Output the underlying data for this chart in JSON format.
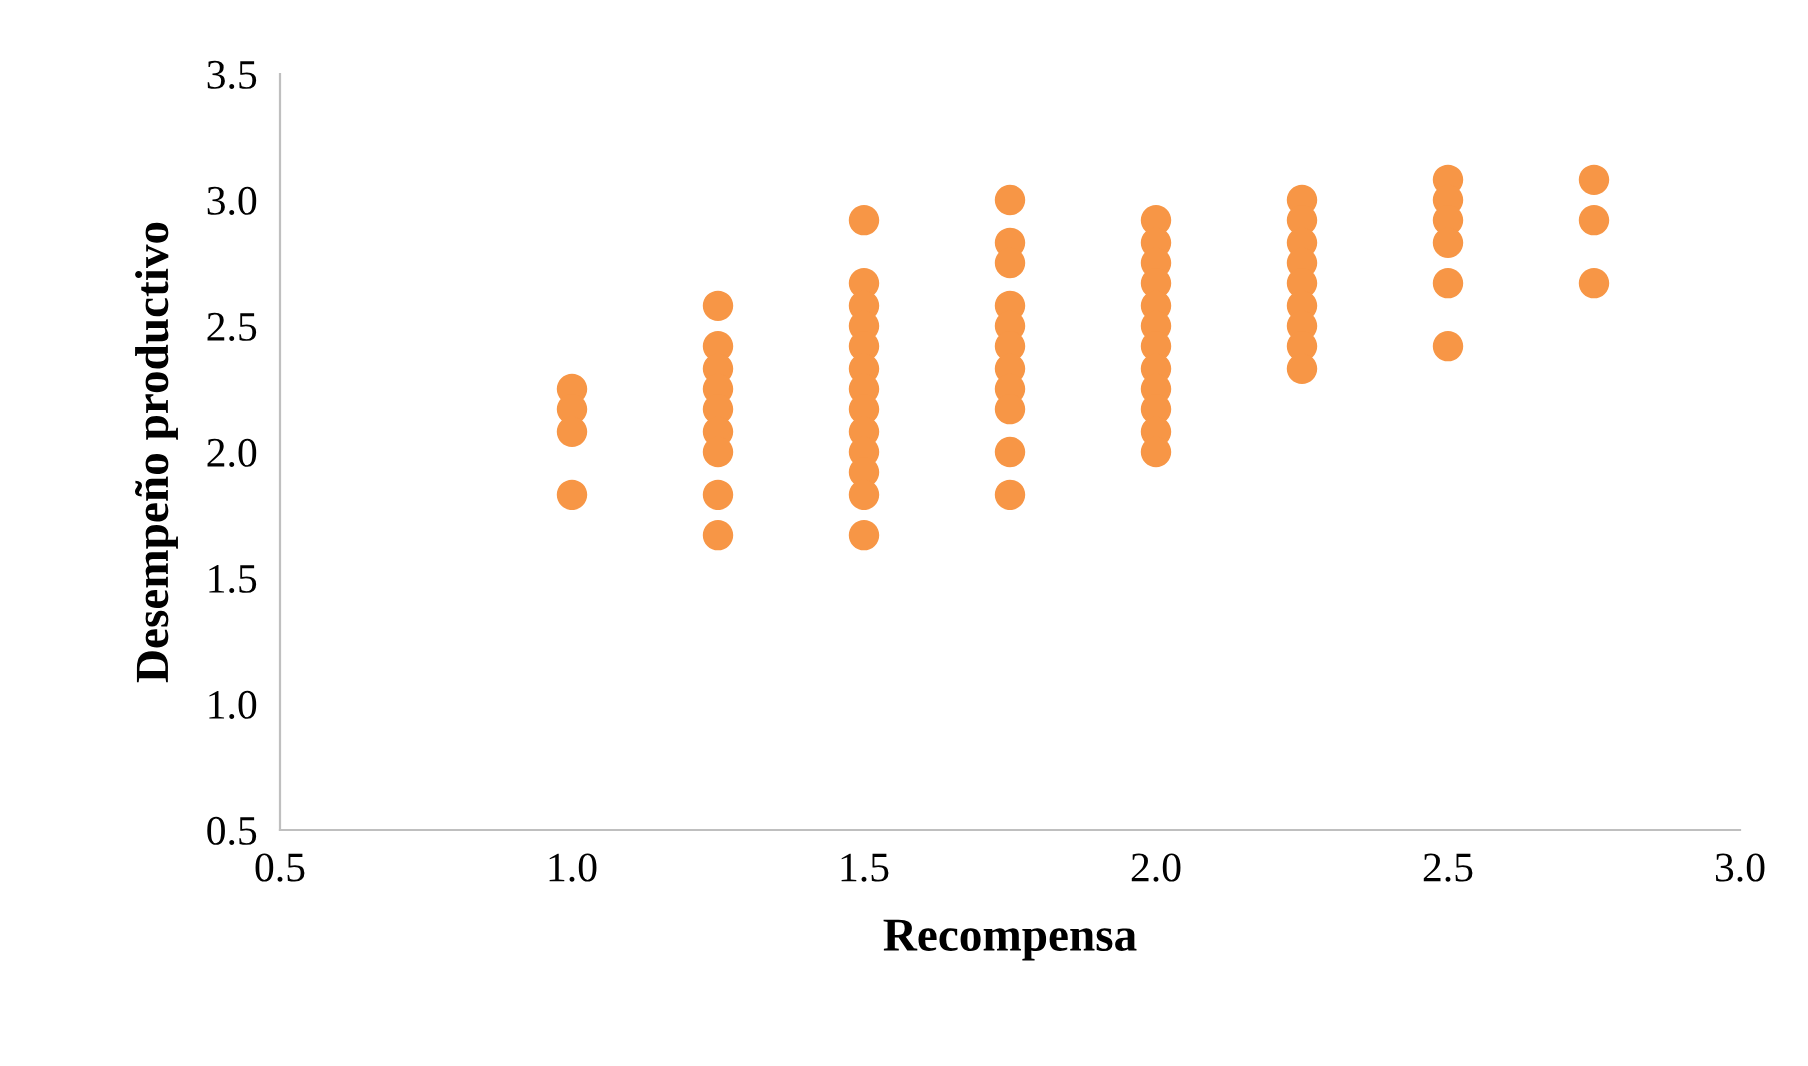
{
  "chart_data": {
    "type": "scatter",
    "xlabel": "Recompensa",
    "ylabel": "Desempeño productivo",
    "xlim": [
      0.5,
      3.0
    ],
    "ylim": [
      0.5,
      3.5
    ],
    "xticks": [
      {
        "value": 0.5,
        "label": "0.5"
      },
      {
        "value": 1.0,
        "label": "1.0"
      },
      {
        "value": 1.5,
        "label": "1.5"
      },
      {
        "value": 2.0,
        "label": "2.0"
      },
      {
        "value": 2.5,
        "label": "2.5"
      },
      {
        "value": 3.0,
        "label": "3.0"
      }
    ],
    "yticks": [
      {
        "value": 0.5,
        "label": "0.5"
      },
      {
        "value": 1.0,
        "label": "1.0"
      },
      {
        "value": 1.5,
        "label": "1.5"
      },
      {
        "value": 2.0,
        "label": "2.0"
      },
      {
        "value": 2.5,
        "label": "2.5"
      },
      {
        "value": 3.0,
        "label": "3.0"
      },
      {
        "value": 3.5,
        "label": "3.5"
      }
    ],
    "grid": false,
    "marker": "circle",
    "series": [
      {
        "color": "#f79646",
        "x": [
          1.0,
          1.0,
          1.0,
          1.0,
          1.25,
          1.25,
          1.25,
          1.25,
          1.25,
          1.25,
          1.25,
          1.25,
          1.25,
          1.5,
          1.5,
          1.5,
          1.5,
          1.5,
          1.5,
          1.5,
          1.5,
          1.5,
          1.5,
          1.5,
          1.5,
          1.5,
          1.75,
          1.75,
          1.75,
          1.75,
          1.75,
          1.75,
          1.75,
          1.75,
          1.75,
          1.75,
          1.75,
          2.0,
          2.0,
          2.0,
          2.0,
          2.0,
          2.0,
          2.0,
          2.0,
          2.0,
          2.0,
          2.0,
          2.0,
          2.25,
          2.25,
          2.25,
          2.25,
          2.25,
          2.25,
          2.25,
          2.25,
          2.25,
          2.5,
          2.5,
          2.5,
          2.5,
          2.5,
          2.5,
          2.75,
          2.75,
          2.75
        ],
        "values": [
          2.25,
          2.17,
          2.08,
          1.83,
          2.58,
          2.42,
          2.33,
          2.25,
          2.17,
          2.08,
          2.0,
          1.83,
          1.67,
          2.92,
          2.67,
          2.58,
          2.5,
          2.42,
          2.33,
          2.25,
          2.17,
          2.08,
          2.0,
          1.92,
          1.83,
          1.67,
          3.0,
          2.83,
          2.75,
          2.58,
          2.5,
          2.42,
          2.33,
          2.25,
          2.17,
          2.0,
          1.83,
          2.92,
          2.83,
          2.75,
          2.67,
          2.58,
          2.5,
          2.42,
          2.33,
          2.25,
          2.17,
          2.08,
          2.0,
          3.0,
          2.92,
          2.83,
          2.75,
          2.67,
          2.58,
          2.5,
          2.42,
          2.33,
          3.08,
          3.0,
          2.92,
          2.83,
          2.67,
          2.42,
          3.08,
          2.92,
          2.67
        ]
      }
    ]
  }
}
